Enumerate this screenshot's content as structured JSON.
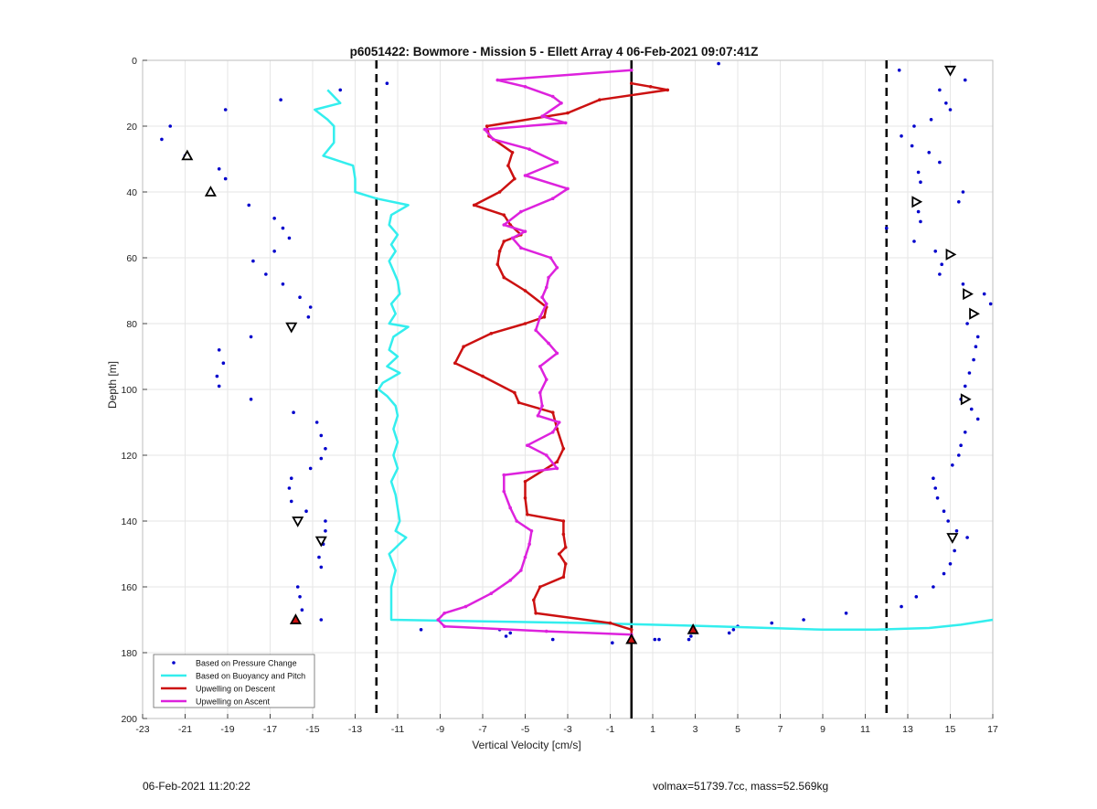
{
  "footer": {
    "timestamp": "06-Feb-2021 11:20:22",
    "metrics": "volmax=51739.7cc, mass=52.569kg"
  },
  "chart_data": {
    "type": "line",
    "title": "p6051422: Bowmore - Mission 5 - Ellett Array 4 06-Feb-2021 09:07:41Z",
    "xlabel": "Vertical Velocity [cm/s]",
    "ylabel": "Depth [m]",
    "xlim": [
      -23,
      17
    ],
    "ylim": [
      0,
      200
    ],
    "y_reversed": true,
    "grid": true,
    "legend_position": "bottom-left",
    "x_ticks": [
      -23,
      -21,
      -19,
      -17,
      -15,
      -13,
      -11,
      -9,
      -7,
      -5,
      -3,
      -1,
      1,
      3,
      5,
      7,
      9,
      11,
      13,
      15,
      17
    ],
    "y_ticks": [
      0,
      20,
      40,
      60,
      80,
      100,
      120,
      140,
      160,
      180,
      200
    ],
    "reference_lines": [
      {
        "x": -12,
        "style": "dashed",
        "color": "#000000"
      },
      {
        "x": 12,
        "style": "dashed",
        "color": "#000000"
      },
      {
        "x": 0,
        "style": "solid",
        "color": "#000000"
      }
    ],
    "series": [
      {
        "name": "Based on Pressure Change",
        "kind": "scatter",
        "color": "#0000cc",
        "points": [
          [
            4.1,
            1
          ],
          [
            12.6,
            3
          ],
          [
            15.7,
            6
          ],
          [
            -11.5,
            7
          ],
          [
            -13.7,
            9
          ],
          [
            14.5,
            9
          ],
          [
            -16.5,
            12
          ],
          [
            14.8,
            13
          ],
          [
            15.0,
            15
          ],
          [
            -19.1,
            15
          ],
          [
            14.1,
            18
          ],
          [
            -21.7,
            20
          ],
          [
            13.3,
            20
          ],
          [
            12.7,
            23
          ],
          [
            13.2,
            26
          ],
          [
            -22.1,
            24
          ],
          [
            -21.0,
            29
          ],
          [
            14.0,
            28
          ],
          [
            -19.4,
            33
          ],
          [
            14.5,
            31
          ],
          [
            13.5,
            34
          ],
          [
            -19.1,
            36
          ],
          [
            13.6,
            37
          ],
          [
            -19.8,
            40
          ],
          [
            15.6,
            40
          ],
          [
            15.4,
            43
          ],
          [
            -18.0,
            44
          ],
          [
            -16.8,
            48
          ],
          [
            13.5,
            46
          ],
          [
            -16.4,
            51
          ],
          [
            13.6,
            49
          ],
          [
            -16.1,
            54
          ],
          [
            12.0,
            51
          ],
          [
            13.3,
            55
          ],
          [
            -16.8,
            58
          ],
          [
            14.3,
            58
          ],
          [
            -17.8,
            61
          ],
          [
            14.6,
            62
          ],
          [
            -17.2,
            65
          ],
          [
            14.5,
            65
          ],
          [
            -16.4,
            68
          ],
          [
            15.6,
            68
          ],
          [
            -15.6,
            72
          ],
          [
            16.6,
            71
          ],
          [
            -15.1,
            75
          ],
          [
            16.9,
            74
          ],
          [
            -15.2,
            78
          ],
          [
            16.1,
            77
          ],
          [
            -16.0,
            81
          ],
          [
            15.8,
            80
          ],
          [
            -17.9,
            84
          ],
          [
            16.3,
            84
          ],
          [
            -19.4,
            88
          ],
          [
            16.2,
            87
          ],
          [
            -19.2,
            92
          ],
          [
            16.1,
            91
          ],
          [
            -19.5,
            96
          ],
          [
            15.9,
            95
          ],
          [
            -19.4,
            99
          ],
          [
            15.7,
            99
          ],
          [
            -17.9,
            103
          ],
          [
            15.5,
            103
          ],
          [
            -15.9,
            107
          ],
          [
            16.0,
            106
          ],
          [
            -14.8,
            110
          ],
          [
            16.3,
            109
          ],
          [
            -14.6,
            114
          ],
          [
            15.7,
            113
          ],
          [
            -14.4,
            118
          ],
          [
            15.5,
            117
          ],
          [
            -14.6,
            121
          ],
          [
            15.4,
            120
          ],
          [
            -15.1,
            124
          ],
          [
            15.1,
            123
          ],
          [
            -16.0,
            127
          ],
          [
            14.2,
            127
          ],
          [
            -16.1,
            130
          ],
          [
            14.3,
            130
          ],
          [
            -16.0,
            134
          ],
          [
            14.4,
            133
          ],
          [
            -15.3,
            137
          ],
          [
            14.7,
            137
          ],
          [
            -14.4,
            140
          ],
          [
            14.9,
            140
          ],
          [
            -14.4,
            143
          ],
          [
            15.3,
            143
          ],
          [
            -14.5,
            147
          ],
          [
            15.8,
            145
          ],
          [
            -14.7,
            151
          ],
          [
            15.2,
            149
          ],
          [
            -14.6,
            154
          ],
          [
            15.0,
            153
          ],
          [
            -15.7,
            160
          ],
          [
            14.7,
            156
          ],
          [
            -15.6,
            163
          ],
          [
            14.2,
            160
          ],
          [
            -15.5,
            167
          ],
          [
            13.4,
            163
          ],
          [
            -15.8,
            170
          ],
          [
            -14.6,
            170
          ],
          [
            12.7,
            166
          ],
          [
            10.1,
            168
          ],
          [
            8.1,
            170
          ],
          [
            6.6,
            171
          ],
          [
            -9.9,
            173
          ],
          [
            -5.9,
            175
          ],
          [
            -5.7,
            174
          ],
          [
            -3.7,
            176
          ],
          [
            -0.9,
            177
          ],
          [
            1.1,
            176
          ],
          [
            1.3,
            176
          ],
          [
            2.7,
            176
          ],
          [
            2.8,
            175
          ],
          [
            4.6,
            174
          ],
          [
            4.8,
            173
          ],
          [
            5.0,
            172
          ],
          [
            -6.2,
            173
          ]
        ]
      },
      {
        "name": "Based on Buoyancy and Pitch",
        "kind": "line",
        "color": "#33eeee",
        "points": [
          [
            -14.3,
            9
          ],
          [
            -13.7,
            13
          ],
          [
            -14.9,
            15
          ],
          [
            -14.3,
            18
          ],
          [
            -14.0,
            20
          ],
          [
            -14.0,
            25
          ],
          [
            -14.5,
            29
          ],
          [
            -13.1,
            32
          ],
          [
            -13.0,
            36
          ],
          [
            -13.0,
            40
          ],
          [
            -12.0,
            42
          ],
          [
            -10.5,
            44
          ],
          [
            -11.3,
            47
          ],
          [
            -11.4,
            50
          ],
          [
            -11.0,
            53
          ],
          [
            -11.3,
            56
          ],
          [
            -11.1,
            58
          ],
          [
            -11.4,
            61
          ],
          [
            -11.2,
            64
          ],
          [
            -11.0,
            67
          ],
          [
            -10.9,
            71
          ],
          [
            -11.3,
            74
          ],
          [
            -11.1,
            77
          ],
          [
            -11.4,
            80
          ],
          [
            -10.5,
            81
          ],
          [
            -11.2,
            84
          ],
          [
            -11.4,
            88
          ],
          [
            -11.0,
            90
          ],
          [
            -11.5,
            93
          ],
          [
            -10.9,
            95
          ],
          [
            -11.7,
            98
          ],
          [
            -11.9,
            100
          ],
          [
            -11.5,
            102
          ],
          [
            -11.1,
            105
          ],
          [
            -11.0,
            108
          ],
          [
            -11.2,
            112
          ],
          [
            -11.0,
            116
          ],
          [
            -11.2,
            120
          ],
          [
            -11.0,
            124
          ],
          [
            -11.3,
            128
          ],
          [
            -11.1,
            132
          ],
          [
            -11.0,
            136
          ],
          [
            -10.9,
            140
          ],
          [
            -11.1,
            143
          ],
          [
            -10.6,
            145
          ],
          [
            -11.4,
            150
          ],
          [
            -11.1,
            155
          ],
          [
            -11.3,
            160
          ],
          [
            -11.3,
            165
          ],
          [
            -11.3,
            170
          ],
          [
            -2.0,
            171
          ],
          [
            4.0,
            172
          ],
          [
            9.0,
            173
          ],
          [
            11.5,
            173
          ],
          [
            14.0,
            172.5
          ],
          [
            15.5,
            171.5
          ],
          [
            17.0,
            170
          ]
        ]
      },
      {
        "name": "Upwelling on Descent",
        "kind": "line",
        "color": "#cc1111",
        "points": [
          [
            0.0,
            7
          ],
          [
            0.9,
            8
          ],
          [
            1.7,
            9
          ],
          [
            -1.5,
            12
          ],
          [
            -3.0,
            16
          ],
          [
            -6.8,
            20
          ],
          [
            -6.7,
            23
          ],
          [
            -5.6,
            28
          ],
          [
            -5.8,
            32
          ],
          [
            -5.5,
            36
          ],
          [
            -6.2,
            40
          ],
          [
            -7.4,
            44
          ],
          [
            -6.0,
            47
          ],
          [
            -5.7,
            50
          ],
          [
            -5.2,
            53
          ],
          [
            -6.0,
            55
          ],
          [
            -6.2,
            58
          ],
          [
            -6.3,
            62
          ],
          [
            -6.0,
            66
          ],
          [
            -5.0,
            70
          ],
          [
            -4.0,
            75
          ],
          [
            -4.1,
            78
          ],
          [
            -5.0,
            80
          ],
          [
            -6.6,
            83
          ],
          [
            -7.9,
            87
          ],
          [
            -8.3,
            92
          ],
          [
            -7.0,
            96
          ],
          [
            -5.5,
            101
          ],
          [
            -5.3,
            104
          ],
          [
            -3.7,
            107
          ],
          [
            -3.5,
            112
          ],
          [
            -3.2,
            118
          ],
          [
            -3.5,
            122
          ],
          [
            -5.0,
            128
          ],
          [
            -5.0,
            133
          ],
          [
            -4.9,
            138
          ],
          [
            -3.2,
            140
          ],
          [
            -3.2,
            144
          ],
          [
            -3.1,
            148
          ],
          [
            -3.4,
            150
          ],
          [
            -3.1,
            153
          ],
          [
            -3.2,
            157
          ],
          [
            -4.3,
            160
          ],
          [
            -4.6,
            164
          ],
          [
            -4.5,
            168
          ],
          [
            -1.0,
            171
          ],
          [
            0.0,
            173
          ],
          [
            0.0,
            175
          ]
        ]
      },
      {
        "name": "Upwelling on Ascent",
        "kind": "line",
        "color": "#dd22dd",
        "points": [
          [
            0.0,
            3
          ],
          [
            -6.3,
            6
          ],
          [
            -5.0,
            8
          ],
          [
            -3.7,
            11
          ],
          [
            -3.3,
            13
          ],
          [
            -4.2,
            17
          ],
          [
            -3.1,
            19
          ],
          [
            -6.9,
            21
          ],
          [
            -6.5,
            24
          ],
          [
            -4.8,
            27
          ],
          [
            -3.5,
            31
          ],
          [
            -5.0,
            35
          ],
          [
            -3.0,
            39
          ],
          [
            -3.7,
            42
          ],
          [
            -5.2,
            46
          ],
          [
            -6.0,
            50
          ],
          [
            -5.0,
            52
          ],
          [
            -5.6,
            54
          ],
          [
            -5.2,
            57
          ],
          [
            -3.8,
            60
          ],
          [
            -3.5,
            63
          ],
          [
            -3.9,
            66
          ],
          [
            -4.0,
            69
          ],
          [
            -4.2,
            72
          ],
          [
            -4.0,
            74
          ],
          [
            -4.3,
            78
          ],
          [
            -4.5,
            82
          ],
          [
            -3.9,
            86
          ],
          [
            -3.5,
            89
          ],
          [
            -4.3,
            93
          ],
          [
            -4.0,
            97
          ],
          [
            -4.3,
            101
          ],
          [
            -4.2,
            105
          ],
          [
            -4.4,
            108
          ],
          [
            -3.4,
            110
          ],
          [
            -3.7,
            113
          ],
          [
            -4.9,
            117
          ],
          [
            -4.0,
            120
          ],
          [
            -3.5,
            124
          ],
          [
            -6.0,
            126
          ],
          [
            -6.0,
            131
          ],
          [
            -5.7,
            136
          ],
          [
            -5.4,
            140
          ],
          [
            -4.7,
            143
          ],
          [
            -4.8,
            147
          ],
          [
            -5.0,
            151
          ],
          [
            -5.2,
            155
          ],
          [
            -5.7,
            158
          ],
          [
            -6.6,
            162
          ],
          [
            -7.8,
            166
          ],
          [
            -8.8,
            168
          ],
          [
            -9.1,
            170
          ],
          [
            -8.8,
            172
          ],
          [
            -4.0,
            173.5
          ],
          [
            0.0,
            174.5
          ]
        ]
      },
      {
        "name": "",
        "kind": "markers",
        "marker": "triangle-up",
        "color": "#000000",
        "points": [
          [
            -20.9,
            29
          ],
          [
            -19.8,
            40
          ],
          [
            -15.8,
            170
          ],
          [
            2.9,
            173
          ],
          [
            0.0,
            176
          ]
        ]
      },
      {
        "name": "",
        "kind": "markers",
        "marker": "triangle-down",
        "color": "#000000",
        "points": [
          [
            15.0,
            3
          ],
          [
            -16.0,
            81
          ],
          [
            -15.7,
            140
          ],
          [
            -14.6,
            146
          ],
          [
            15.1,
            145
          ]
        ]
      },
      {
        "name": "",
        "kind": "markers",
        "marker": "triangle-right",
        "color": "#000000",
        "points": [
          [
            13.4,
            43
          ],
          [
            15.0,
            59
          ],
          [
            15.8,
            71
          ],
          [
            16.1,
            77
          ],
          [
            15.7,
            103
          ]
        ]
      }
    ]
  }
}
